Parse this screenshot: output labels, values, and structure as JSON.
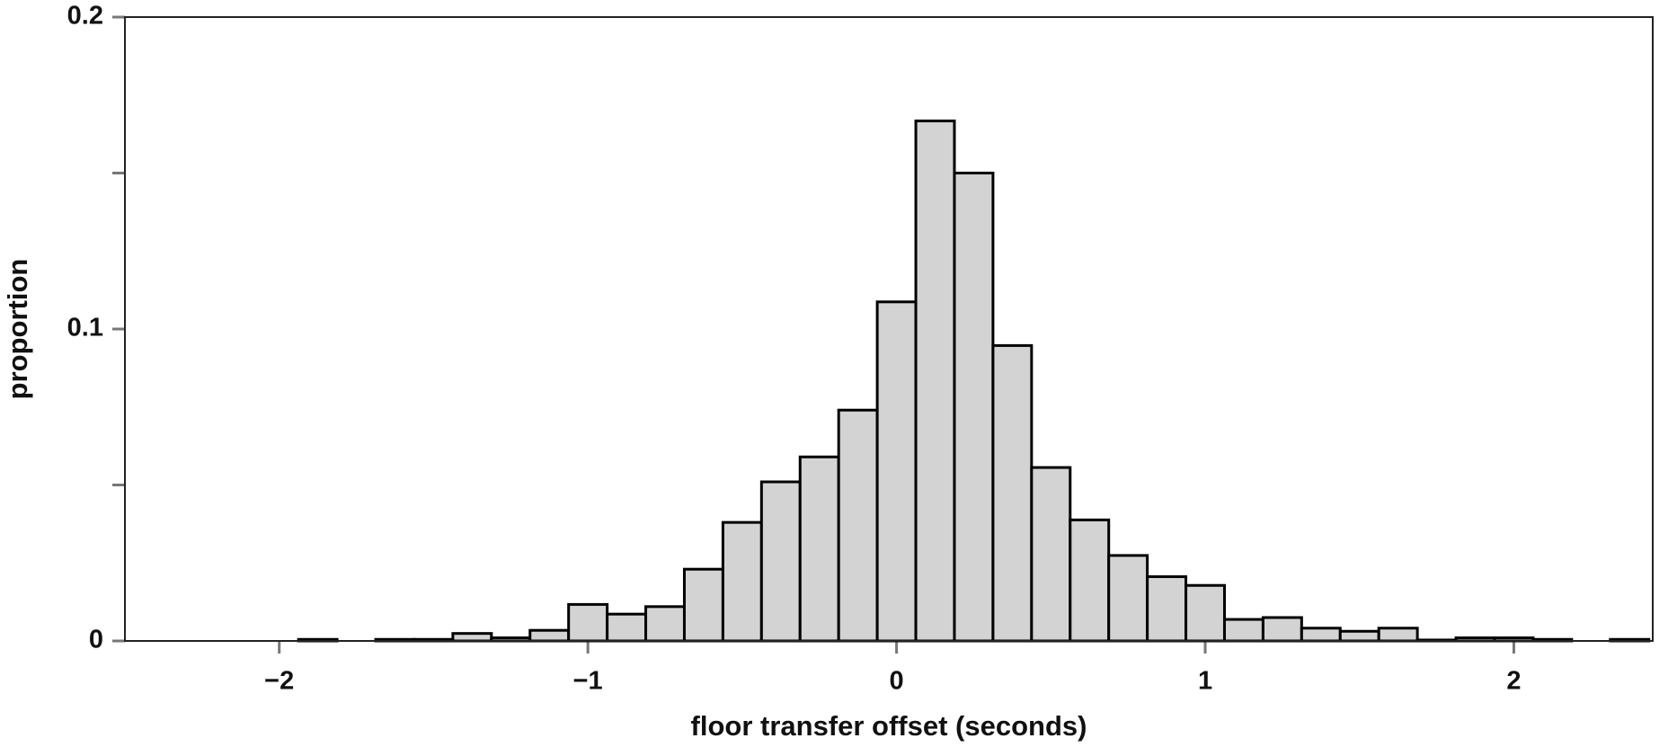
{
  "chart_data": {
    "type": "histogram",
    "x_label": "floor transfer offset (seconds)",
    "y_label": "proportion",
    "bins": [
      -1.9375,
      -1.8125,
      -1.6875,
      -1.5625,
      -1.4375,
      -1.3125,
      -1.1875,
      -1.0625,
      -0.9375,
      -0.8125,
      -0.6875,
      -0.5625,
      -0.4375,
      -0.3125,
      -0.1875,
      -0.0625,
      0.0625,
      0.1875,
      0.3125,
      0.4375,
      0.5625,
      0.6875,
      0.8125,
      0.9375,
      1.0625,
      1.1875,
      1.3125,
      1.4375,
      1.5625,
      1.6875,
      1.8125,
      1.9375,
      2.0625,
      2.1875,
      2.3125,
      2.4375
    ],
    "values": [
      0.0005,
      0,
      0.0005,
      0.0005,
      0.0024,
      0.001,
      0.0034,
      0.0117,
      0.0086,
      0.011,
      0.023,
      0.038,
      0.051,
      0.059,
      0.074,
      0.1087,
      0.1667,
      0.15,
      0.0947,
      0.0556,
      0.0388,
      0.0274,
      0.0206,
      0.0178,
      0.0069,
      0.0075,
      0.0041,
      0.0031,
      0.0041,
      0.0003,
      0.001,
      0.001,
      0.0005,
      0,
      0.0005
    ],
    "color": "#d3d3d3",
    "edge_color": "#000000",
    "xlim": [
      -2.5,
      2.45
    ],
    "xticks": [
      {
        "value": -2,
        "label": "−2"
      },
      {
        "value": -1,
        "label": "−1"
      },
      0,
      1,
      2
    ],
    "ylim": [
      0,
      0.2
    ],
    "yticks": [
      0,
      0.1,
      0.2
    ],
    "yminorticks": [
      0.05,
      0.15
    ],
    "grid": false
  }
}
